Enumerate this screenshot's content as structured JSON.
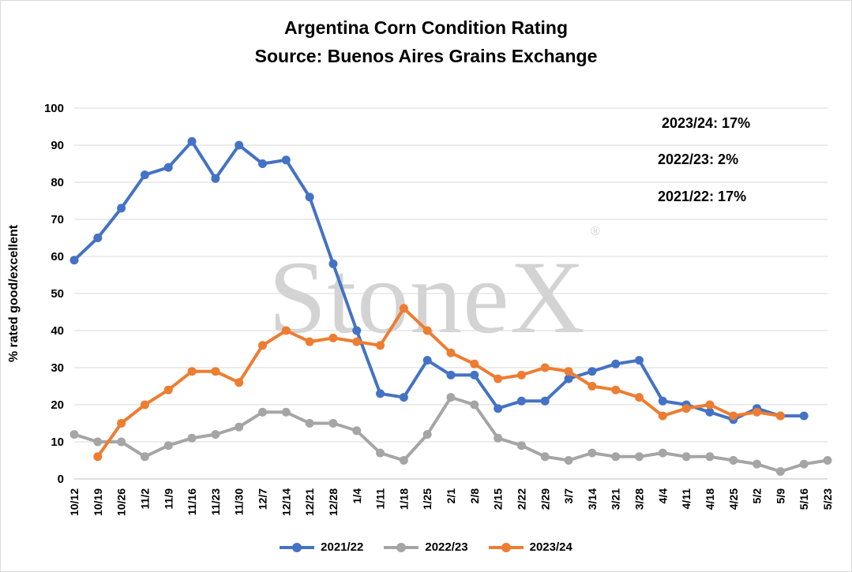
{
  "title_line1": "Argentina Corn Condition Rating",
  "title_line2": "Source: Buenos Aires Grains Exchange",
  "annotations": [
    "2023/24: 17%",
    "2022/23: 2%",
    "2021/22: 17%"
  ],
  "watermark": "StoneX",
  "watermark_mark": "®",
  "chart_data": {
    "type": "line",
    "title": "Argentina Corn Condition Rating",
    "subtitle": "Source: Buenos Aires Grains Exchange",
    "xlabel": "",
    "ylabel": "% rated good/excellent",
    "ylim": [
      0,
      100
    ],
    "yticks": [
      0,
      10,
      20,
      30,
      40,
      50,
      60,
      70,
      80,
      90,
      100
    ],
    "grid": true,
    "legend": "bottom",
    "categories": [
      "10/12",
      "10/19",
      "10/26",
      "11/2",
      "11/9",
      "11/16",
      "11/23",
      "11/30",
      "12/7",
      "12/14",
      "12/21",
      "12/28",
      "1/4",
      "1/11",
      "1/18",
      "1/25",
      "2/1",
      "2/8",
      "2/15",
      "2/22",
      "2/29",
      "3/7",
      "3/14",
      "3/21",
      "3/28",
      "4/4",
      "4/11",
      "4/18",
      "4/25",
      "5/2",
      "5/9",
      "5/16",
      "5/23"
    ],
    "series": [
      {
        "name": "2021/22",
        "color": "#4472c4",
        "values": [
          59,
          65,
          73,
          82,
          84,
          91,
          81,
          90,
          85,
          86,
          76,
          58,
          40,
          23,
          22,
          32,
          28,
          28,
          19,
          21,
          21,
          27,
          29,
          31,
          32,
          21,
          20,
          18,
          16,
          19,
          17,
          17,
          null
        ]
      },
      {
        "name": "2022/23",
        "color": "#a5a5a5",
        "values": [
          12,
          10,
          10,
          6,
          9,
          11,
          12,
          14,
          18,
          18,
          15,
          15,
          13,
          7,
          5,
          12,
          22,
          20,
          11,
          9,
          6,
          5,
          7,
          6,
          6,
          7,
          6,
          6,
          5,
          4,
          2,
          4,
          5
        ]
      },
      {
        "name": "2023/24",
        "color": "#ed7d31",
        "values": [
          null,
          6,
          15,
          20,
          24,
          29,
          29,
          26,
          36,
          40,
          37,
          38,
          37,
          36,
          46,
          40,
          34,
          31,
          27,
          28,
          30,
          29,
          25,
          24,
          22,
          17,
          19,
          20,
          17,
          18,
          17,
          null,
          null
        ]
      }
    ]
  }
}
